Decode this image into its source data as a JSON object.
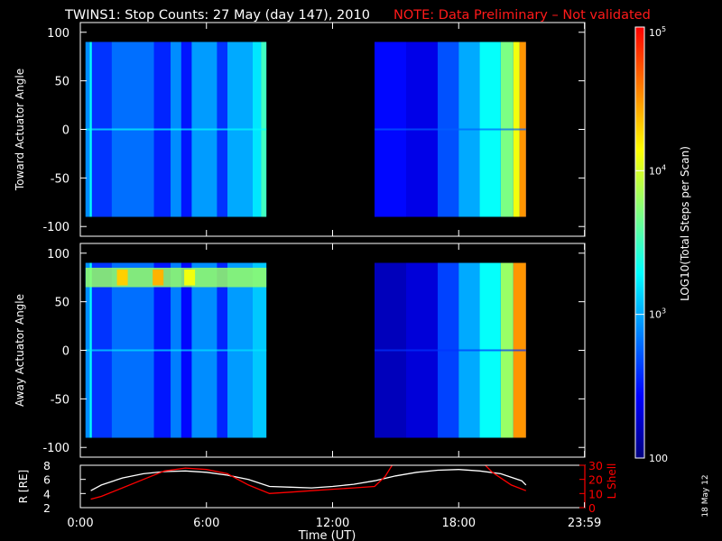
{
  "header": {
    "title": "TWINS1: Stop Counts: 27 May (day 147), 2010",
    "note": "NOTE: Data Preliminary – Not validated",
    "note_color": "#ff1a1a"
  },
  "side_stamp": "18 May 12",
  "colorbar": {
    "label": "LOG10(Total Steps per Scan)",
    "ticks": [
      "10^5",
      "10^4",
      "10^3",
      "100"
    ],
    "tick_values": [
      5,
      4,
      3,
      2
    ],
    "range": [
      2,
      5
    ],
    "colormap": [
      "#00007f",
      "#0000ff",
      "#0080ff",
      "#00ffff",
      "#80ff80",
      "#ffff00",
      "#ff8000",
      "#ff0000"
    ]
  },
  "chart_data": [
    {
      "type": "heatmap",
      "title": "TWINS1: Stop Counts: 27 May (day 147), 2010",
      "ylabel": "Toward Actuator Angle",
      "xlim": [
        0,
        24
      ],
      "ylim": [
        -110,
        110
      ],
      "y_data_range": [
        -90,
        90
      ],
      "yticks": [
        100,
        50,
        0,
        -50,
        -100
      ],
      "color_scale": "log10",
      "blocks": [
        {
          "t_start": 0.25,
          "t_end": 8.85,
          "background_level": 2.95,
          "column_levels": [
            {
              "t_start": 0.25,
              "t_end": 0.45,
              "level": 2.9
            },
            {
              "t_start": 0.45,
              "t_end": 0.55,
              "level": 3.3
            },
            {
              "t_start": 0.55,
              "t_end": 1.5,
              "level": 2.6
            },
            {
              "t_start": 1.5,
              "t_end": 3.5,
              "level": 2.8
            },
            {
              "t_start": 3.5,
              "t_end": 4.3,
              "level": 2.55
            },
            {
              "t_start": 4.3,
              "t_end": 4.8,
              "level": 2.9
            },
            {
              "t_start": 4.8,
              "t_end": 5.3,
              "level": 2.5
            },
            {
              "t_start": 5.3,
              "t_end": 6.5,
              "level": 2.95
            },
            {
              "t_start": 6.5,
              "t_end": 7.0,
              "level": 2.6
            },
            {
              "t_start": 7.0,
              "t_end": 8.2,
              "level": 3.0
            },
            {
              "t_start": 8.2,
              "t_end": 8.6,
              "level": 3.2
            },
            {
              "t_start": 8.6,
              "t_end": 8.85,
              "level": 3.5
            }
          ]
        },
        {
          "t_start": 14.0,
          "t_end": 21.2,
          "background_level": 2.4,
          "column_levels": [
            {
              "t_start": 14.0,
              "t_end": 15.5,
              "level": 2.45
            },
            {
              "t_start": 15.5,
              "t_end": 17.0,
              "level": 2.35
            },
            {
              "t_start": 17.0,
              "t_end": 18.0,
              "level": 2.7
            },
            {
              "t_start": 18.0,
              "t_end": 19.0,
              "level": 3.0
            },
            {
              "t_start": 19.0,
              "t_end": 20.0,
              "level": 3.3
            },
            {
              "t_start": 20.0,
              "t_end": 20.6,
              "level": 3.7
            },
            {
              "t_start": 20.6,
              "t_end": 20.9,
              "level": 4.1
            },
            {
              "t_start": 20.9,
              "t_end": 21.2,
              "level": 4.5
            }
          ]
        }
      ]
    },
    {
      "type": "heatmap",
      "ylabel": "Away Actuator Angle",
      "xlim": [
        0,
        24
      ],
      "ylim": [
        -110,
        110
      ],
      "y_data_range": [
        -90,
        90
      ],
      "yticks": [
        100,
        50,
        0,
        -50,
        -100
      ],
      "color_scale": "log10",
      "blocks": [
        {
          "t_start": 0.25,
          "t_end": 8.85,
          "background_level": 2.85,
          "column_levels": [
            {
              "t_start": 0.25,
              "t_end": 0.45,
              "level": 2.9
            },
            {
              "t_start": 0.45,
              "t_end": 0.55,
              "level": 3.3
            },
            {
              "t_start": 0.55,
              "t_end": 1.5,
              "level": 2.6
            },
            {
              "t_start": 1.5,
              "t_end": 3.5,
              "level": 2.8
            },
            {
              "t_start": 3.5,
              "t_end": 4.3,
              "level": 2.5
            },
            {
              "t_start": 4.3,
              "t_end": 4.8,
              "level": 2.85
            },
            {
              "t_start": 4.8,
              "t_end": 5.3,
              "level": 2.45
            },
            {
              "t_start": 5.3,
              "t_end": 6.5,
              "level": 2.9
            },
            {
              "t_start": 6.5,
              "t_end": 7.0,
              "level": 2.55
            },
            {
              "t_start": 7.0,
              "t_end": 8.2,
              "level": 2.95
            },
            {
              "t_start": 8.2,
              "t_end": 8.85,
              "level": 3.1
            }
          ],
          "hotspot_band": {
            "angle_min": 65,
            "angle_max": 85,
            "level": 3.8,
            "peaks": [
              {
                "t": 2.0,
                "level": 4.3
              },
              {
                "t": 3.7,
                "level": 4.4
              },
              {
                "t": 5.2,
                "level": 4.1
              }
            ]
          }
        },
        {
          "t_start": 14.0,
          "t_end": 21.2,
          "background_level": 2.25,
          "column_levels": [
            {
              "t_start": 14.0,
              "t_end": 15.5,
              "level": 2.2
            },
            {
              "t_start": 15.5,
              "t_end": 17.0,
              "level": 2.3
            },
            {
              "t_start": 17.0,
              "t_end": 18.0,
              "level": 2.65
            },
            {
              "t_start": 18.0,
              "t_end": 19.0,
              "level": 3.0
            },
            {
              "t_start": 19.0,
              "t_end": 20.0,
              "level": 3.3
            },
            {
              "t_start": 20.0,
              "t_end": 20.6,
              "level": 3.8
            },
            {
              "t_start": 20.6,
              "t_end": 21.2,
              "level": 4.5
            }
          ]
        }
      ]
    },
    {
      "type": "line",
      "xlabel": "Time (UT)",
      "ylabel": "R [RE]",
      "ylabel_right": "L Shell",
      "xlim": [
        0,
        24
      ],
      "xtick_labels": [
        "0:00",
        "6:00",
        "12:00",
        "18:00",
        "23:59"
      ],
      "xtick_values": [
        0,
        6,
        12,
        18,
        23.983
      ],
      "ylim": [
        2,
        8
      ],
      "yticks": [
        2,
        4,
        6,
        8
      ],
      "ylim_right": [
        0,
        30
      ],
      "yticks_right": [
        0,
        10,
        20,
        30
      ],
      "series": [
        {
          "axis": "left",
          "color": "#ffffff",
          "x": [
            0.5,
            1,
            2,
            3,
            4,
            5,
            6,
            7,
            8,
            9,
            10,
            11,
            12,
            13,
            14,
            15,
            16,
            17,
            18,
            19,
            20,
            21,
            21.2
          ],
          "y": [
            4.4,
            5.2,
            6.2,
            6.8,
            7.1,
            7.2,
            7.0,
            6.6,
            6.0,
            5.0,
            4.9,
            4.8,
            5.0,
            5.3,
            5.8,
            6.5,
            7.0,
            7.3,
            7.4,
            7.2,
            6.8,
            5.8,
            5.2
          ]
        },
        {
          "axis": "right",
          "color": "#ff0000",
          "x": [
            0.5,
            1,
            2,
            3,
            4,
            5,
            6,
            7,
            8,
            9,
            10,
            11,
            12,
            13,
            14,
            14.5,
            15
          ],
          "y": [
            6,
            8,
            14,
            20,
            26,
            28,
            27,
            24,
            16,
            10,
            11,
            12,
            13,
            14,
            15,
            22,
            34
          ]
        },
        {
          "axis": "right",
          "color": "#ff0000",
          "x": [
            19,
            19.6,
            20,
            20.5,
            21.2
          ],
          "y": [
            34,
            25,
            21,
            16,
            12
          ]
        }
      ]
    }
  ]
}
